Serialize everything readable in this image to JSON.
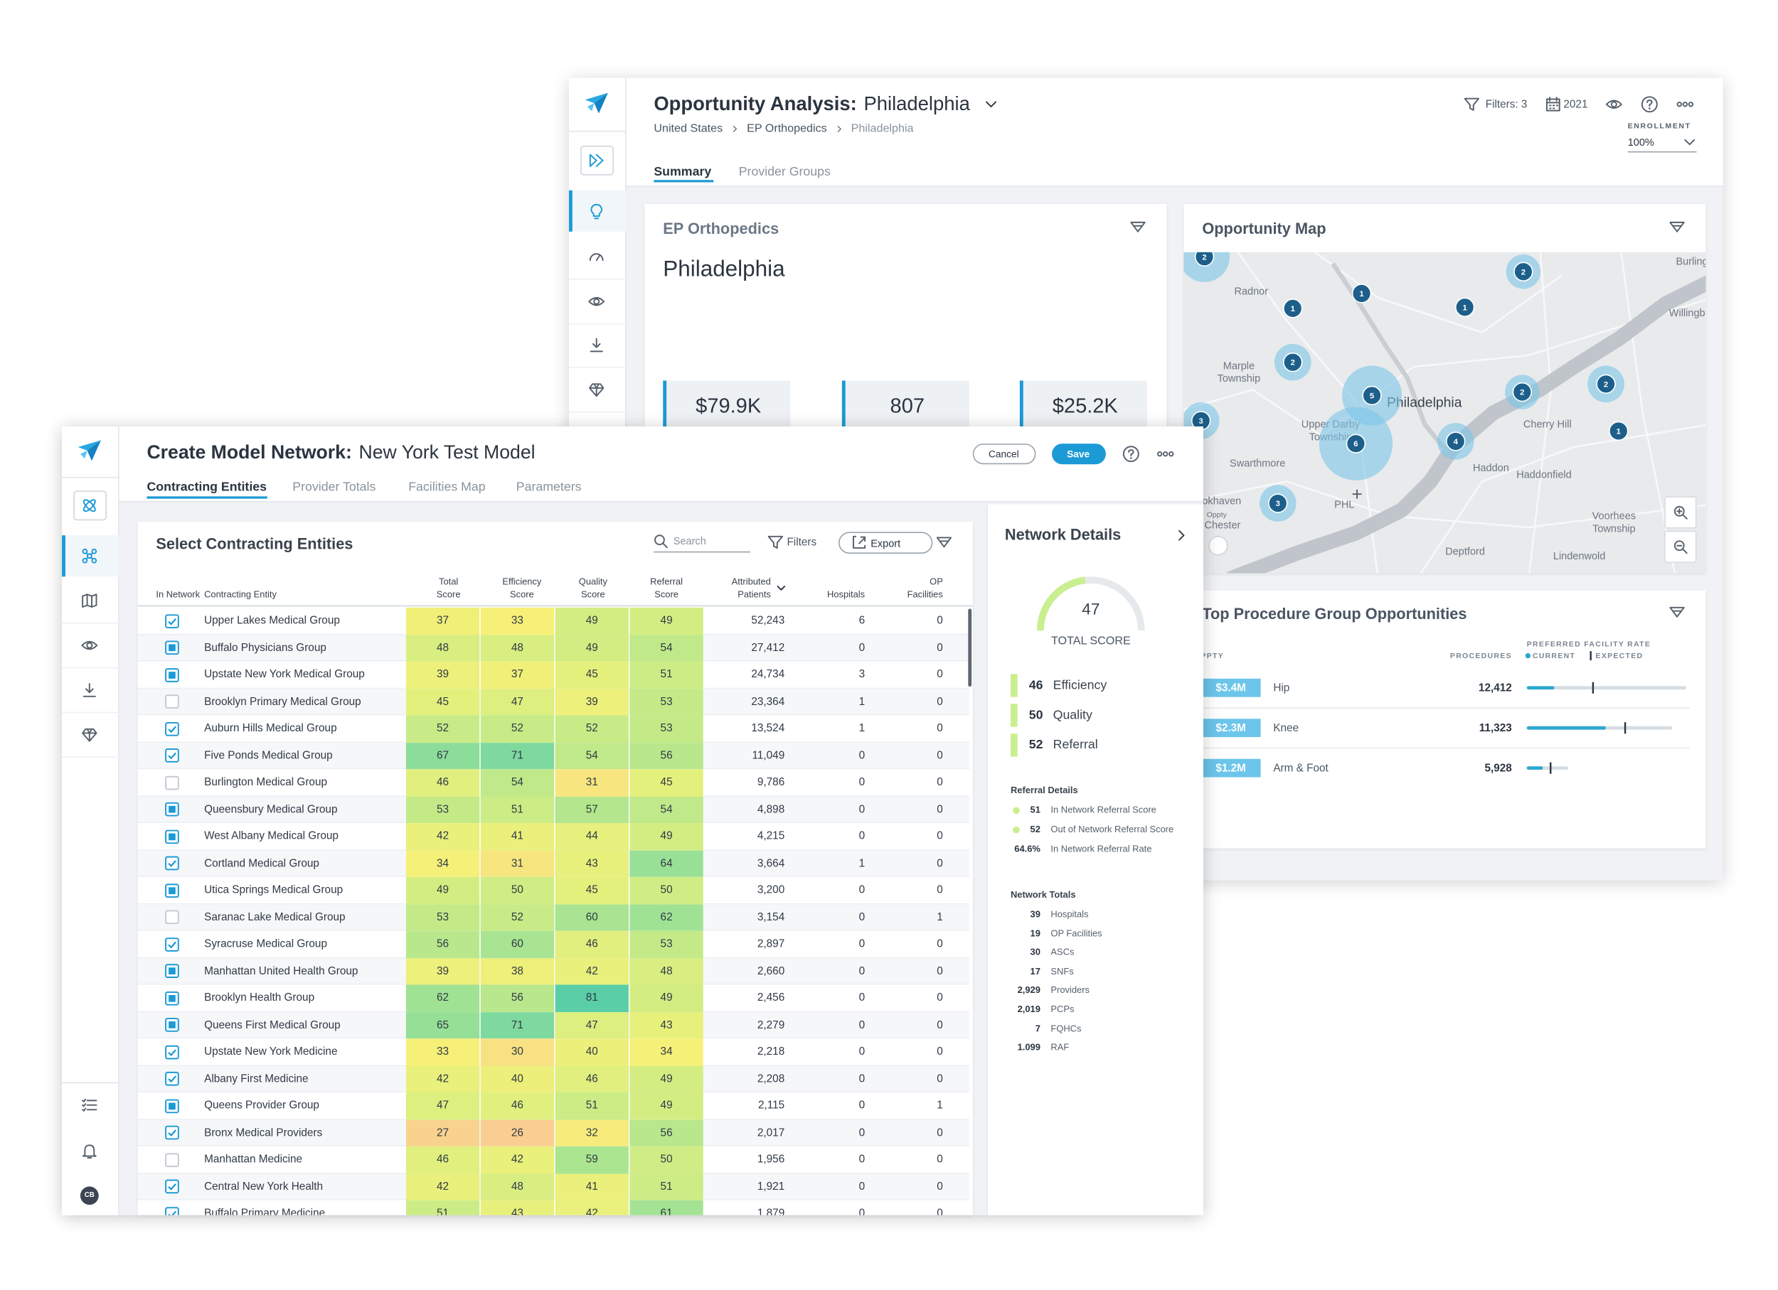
{
  "back": {
    "title_prefix": "Opportunity Analysis:",
    "title": "Philadelphia",
    "breadcrumb": [
      "United States",
      "EP Orthopedics",
      "Philadelphia"
    ],
    "filters": "Filters: 3",
    "year": "2021",
    "enrollment_label": "ENROLLMENT",
    "enrollment": "100%",
    "tabs": [
      "Summary",
      "Provider Groups"
    ],
    "summary": {
      "subtitle": "EP Orthopedics",
      "heading": "Philadelphia",
      "kpis": [
        "$79.9K",
        "807",
        "$25.2K"
      ]
    },
    "map": {
      "title": "Opportunity Map",
      "places": [
        "Radnor",
        "Marple Township",
        "Upper Darby Township",
        "Philadelphia",
        "Swarthmore",
        "Cherry Hill",
        "Haddon",
        "Haddonfield",
        "Voorhees Township",
        "Deptford",
        "Lindenwold",
        "Burlington",
        "Willingboro",
        "PHL",
        "Brookhaven",
        "Chester",
        "Oppty"
      ],
      "clusters": [
        2,
        1,
        1,
        1,
        2,
        2,
        5,
        6,
        4,
        2,
        2,
        1,
        3,
        3
      ]
    },
    "procedures": {
      "title": "Top Procedure Group Opportunities",
      "headers": {
        "oppty": "OPPTY",
        "procedures": "PROCEDURES",
        "rate": "PREFERRED FACILITY RATE",
        "current": "CURRENT",
        "expected": "EXPECTED"
      },
      "rows": [
        {
          "oppty": "$3.4M",
          "name": "Hip",
          "procedures": "12,412"
        },
        {
          "oppty": "$2.3M",
          "name": "Knee",
          "procedures": "11,323"
        },
        {
          "oppty": "$1.2M",
          "name": "Arm & Foot",
          "procedures": "5,928"
        }
      ]
    }
  },
  "front": {
    "title_prefix": "Create Model Network:",
    "title": "New York Test Model",
    "cancel": "Cancel",
    "save": "Save",
    "tabs": [
      "Contracting Entities",
      "Provider Totals",
      "Facilities Map",
      "Parameters"
    ],
    "avatar": "CB",
    "table": {
      "title": "Select Contracting Entities",
      "search": "Search",
      "filters": "Filters",
      "export": "Export",
      "columns": [
        "In Network",
        "Contracting Entity",
        "Total Score",
        "Efficiency Score",
        "Quality Score",
        "Referral Score",
        "Attributed Patients",
        "Hospitals",
        "OP Facilities"
      ],
      "rows": [
        {
          "in_network": "checked",
          "entity": "Upper Lakes Medical Group",
          "scores": [
            37,
            33,
            49,
            49
          ],
          "patients": "52,243",
          "hospitals": 6,
          "op_facilities": 0
        },
        {
          "in_network": "indeterminate",
          "entity": "Buffalo Physicians Group",
          "scores": [
            48,
            48,
            49,
            54
          ],
          "patients": "27,412",
          "hospitals": 0,
          "op_facilities": 0
        },
        {
          "in_network": "indeterminate",
          "entity": "Upstate New York Medical Group",
          "scores": [
            39,
            37,
            45,
            51
          ],
          "patients": "24,734",
          "hospitals": 3,
          "op_facilities": 0
        },
        {
          "in_network": "empty",
          "entity": "Brooklyn Primary Medical Group",
          "scores": [
            45,
            47,
            39,
            53
          ],
          "patients": "23,364",
          "hospitals": 1,
          "op_facilities": 0
        },
        {
          "in_network": "checked",
          "entity": "Auburn Hills Medical Group",
          "scores": [
            52,
            52,
            52,
            53
          ],
          "patients": "13,524",
          "hospitals": 1,
          "op_facilities": 0
        },
        {
          "in_network": "checked",
          "entity": "Five Ponds Medical Group",
          "scores": [
            67,
            71,
            54,
            56
          ],
          "patients": "11,049",
          "hospitals": 0,
          "op_facilities": 0
        },
        {
          "in_network": "empty",
          "entity": "Burlington Medical Group",
          "scores": [
            46,
            54,
            31,
            45
          ],
          "patients": "9,786",
          "hospitals": 0,
          "op_facilities": 0
        },
        {
          "in_network": "indeterminate",
          "entity": "Queensbury Medical Group",
          "scores": [
            53,
            51,
            57,
            54
          ],
          "patients": "4,898",
          "hospitals": 0,
          "op_facilities": 0
        },
        {
          "in_network": "indeterminate",
          "entity": "West Albany Medical Group",
          "scores": [
            42,
            41,
            44,
            49
          ],
          "patients": "4,215",
          "hospitals": 0,
          "op_facilities": 0
        },
        {
          "in_network": "checked",
          "entity": "Cortland Medical Group",
          "scores": [
            34,
            31,
            43,
            64
          ],
          "patients": "3,664",
          "hospitals": 1,
          "op_facilities": 0
        },
        {
          "in_network": "indeterminate",
          "entity": "Utica Springs Medical Group",
          "scores": [
            49,
            50,
            45,
            50
          ],
          "patients": "3,200",
          "hospitals": 0,
          "op_facilities": 0
        },
        {
          "in_network": "empty",
          "entity": "Saranac Lake Medical Group",
          "scores": [
            53,
            52,
            60,
            62
          ],
          "patients": "3,154",
          "hospitals": 0,
          "op_facilities": 1
        },
        {
          "in_network": "checked",
          "entity": "Syracruse Medical Group",
          "scores": [
            56,
            60,
            46,
            53
          ],
          "patients": "2,897",
          "hospitals": 0,
          "op_facilities": 0
        },
        {
          "in_network": "indeterminate",
          "entity": "Manhattan United Health Group",
          "scores": [
            39,
            38,
            42,
            48
          ],
          "patients": "2,660",
          "hospitals": 0,
          "op_facilities": 0
        },
        {
          "in_network": "indeterminate",
          "entity": "Brooklyn Health Group",
          "scores": [
            62,
            56,
            81,
            49
          ],
          "patients": "2,456",
          "hospitals": 0,
          "op_facilities": 0
        },
        {
          "in_network": "indeterminate",
          "entity": "Queens First Medical Group",
          "scores": [
            65,
            71,
            47,
            43
          ],
          "patients": "2,279",
          "hospitals": 0,
          "op_facilities": 0
        },
        {
          "in_network": "checked",
          "entity": "Upstate New York Medicine",
          "scores": [
            33,
            30,
            40,
            34
          ],
          "patients": "2,218",
          "hospitals": 0,
          "op_facilities": 0
        },
        {
          "in_network": "checked",
          "entity": "Albany First Medicine",
          "scores": [
            42,
            40,
            46,
            49
          ],
          "patients": "2,208",
          "hospitals": 0,
          "op_facilities": 0
        },
        {
          "in_network": "indeterminate",
          "entity": "Queens Provider Group",
          "scores": [
            47,
            46,
            51,
            49
          ],
          "patients": "2,115",
          "hospitals": 0,
          "op_facilities": 1
        },
        {
          "in_network": "checked",
          "entity": "Bronx Medical Providers",
          "scores": [
            27,
            26,
            32,
            56
          ],
          "patients": "2,017",
          "hospitals": 0,
          "op_facilities": 0
        },
        {
          "in_network": "empty",
          "entity": "Manhattan Medicine",
          "scores": [
            46,
            42,
            59,
            50
          ],
          "patients": "1,956",
          "hospitals": 0,
          "op_facilities": 0
        },
        {
          "in_network": "checked",
          "entity": "Central New York Health",
          "scores": [
            42,
            48,
            41,
            51
          ],
          "patients": "1,921",
          "hospitals": 0,
          "op_facilities": 0
        },
        {
          "in_network": "checked",
          "entity": "Buffalo Primary Medicine",
          "scores": [
            51,
            43,
            42,
            61
          ],
          "patients": "1,879",
          "hospitals": 0,
          "op_facilities": 0
        }
      ]
    },
    "details": {
      "title": "Network Details",
      "total_score": 47,
      "total_label": "TOTAL SCORE",
      "scores": [
        {
          "value": 46,
          "label": "Efficiency"
        },
        {
          "value": 50,
          "label": "Quality"
        },
        {
          "value": 52,
          "label": "Referral"
        }
      ],
      "referral_title": "Referral Details",
      "referral": [
        {
          "value": "51",
          "label": "In Network Referral Score"
        },
        {
          "value": "52",
          "label": "Out of Network Referral Score"
        },
        {
          "value": "64.6%",
          "label": "In Network Referral Rate"
        }
      ],
      "totals_title": "Network Totals",
      "totals": [
        {
          "value": "39",
          "label": "Hospitals"
        },
        {
          "value": "19",
          "label": "OP Facilities"
        },
        {
          "value": "30",
          "label": "ASCs"
        },
        {
          "value": "17",
          "label": "SNFs"
        },
        {
          "value": "2,929",
          "label": "Providers"
        },
        {
          "value": "2,019",
          "label": "PCPs"
        },
        {
          "value": "7",
          "label": "FQHCs"
        },
        {
          "value": "1.099",
          "label": "RAF"
        }
      ]
    }
  }
}
